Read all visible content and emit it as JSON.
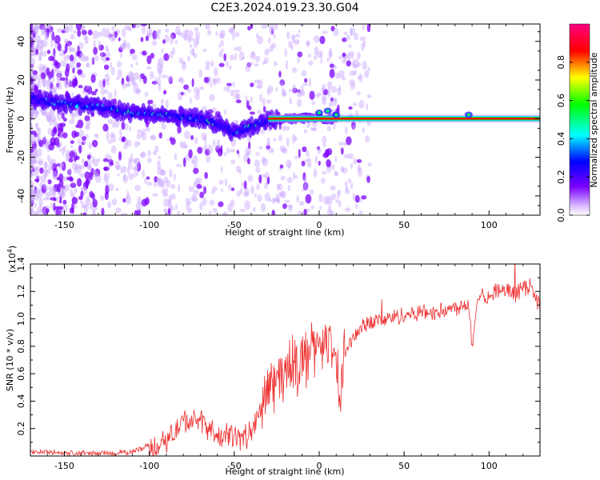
{
  "title": "C2E3.2024.019.23.30.G04",
  "chart_data": [
    {
      "type": "heatmap",
      "xlabel": "Height of straight line (km)",
      "ylabel": "Frequency (Hz)",
      "xlim": [
        -170,
        130
      ],
      "ylim": [
        -50,
        49
      ],
      "xticks": [
        -150,
        -100,
        -50,
        0,
        50,
        100
      ],
      "yticks": [
        -40,
        -20,
        0,
        20,
        40
      ],
      "colorbar": {
        "label": "Normalized spectral amplitude",
        "range": [
          0,
          1
        ],
        "ticks": [
          "0.0",
          "0.2",
          "0.4",
          "0.6",
          "0.8"
        ],
        "colors": [
          "#ffffff",
          "#7b00ff",
          "#0000ff",
          "#00ffff",
          "#00ff00",
          "#ffff00",
          "#ff0000",
          "#ff0080"
        ]
      },
      "ridge": {
        "x": [
          -170,
          -150,
          -130,
          -110,
          -90,
          -70,
          -60,
          -50,
          -40,
          -30,
          -20,
          -10,
          0,
          10,
          20,
          50,
          100,
          130
        ],
        "y": [
          10,
          8,
          6,
          3,
          2,
          0,
          -3,
          -7,
          -4,
          -1,
          0,
          0,
          0,
          0,
          0,
          0,
          0,
          0
        ]
      }
    },
    {
      "type": "line",
      "xlabel": "Height of straight line (km)",
      "ylabel": "SNR (10 * v/v)",
      "y_multiplier": "(x10",
      "y_multiplier_exp": "4",
      "y_multiplier_close": ")",
      "xlim": [
        -170,
        130
      ],
      "ylim": [
        0,
        1.4
      ],
      "xticks": [
        -150,
        -100,
        -50,
        0,
        50,
        100
      ],
      "yticks": [
        "0.2",
        "0.4",
        "0.6",
        "0.8",
        "1.0",
        "1.2",
        "1.4"
      ],
      "color": "#ee3030",
      "series": [
        {
          "x": [
            -170,
            -160,
            -150,
            -140,
            -130,
            -120,
            -110,
            -100,
            -95,
            -90,
            -85,
            -80,
            -75,
            -70,
            -65,
            -60,
            -55,
            -50,
            -45,
            -40,
            -35,
            -32,
            -30,
            -28,
            -25,
            -20,
            -15,
            -10,
            -5,
            0,
            5,
            10,
            12,
            15,
            20,
            25,
            30,
            40,
            50,
            60,
            70,
            80,
            88,
            90,
            92,
            95,
            100,
            105,
            110,
            115,
            120,
            125,
            130
          ],
          "y": [
            0.03,
            0.03,
            0.02,
            0.02,
            0.02,
            0.02,
            0.03,
            0.08,
            0.06,
            0.12,
            0.18,
            0.25,
            0.26,
            0.24,
            0.22,
            0.12,
            0.15,
            0.16,
            0.12,
            0.18,
            0.3,
            0.4,
            0.5,
            0.52,
            0.55,
            0.62,
            0.65,
            0.7,
            0.75,
            0.85,
            0.8,
            0.7,
            0.35,
            0.75,
            0.85,
            0.95,
            0.98,
            1.0,
            1.03,
            1.05,
            1.05,
            1.08,
            1.12,
            0.8,
            1.05,
            1.2,
            1.15,
            1.22,
            1.2,
            1.18,
            1.22,
            1.25,
            1.08
          ]
        }
      ]
    }
  ]
}
